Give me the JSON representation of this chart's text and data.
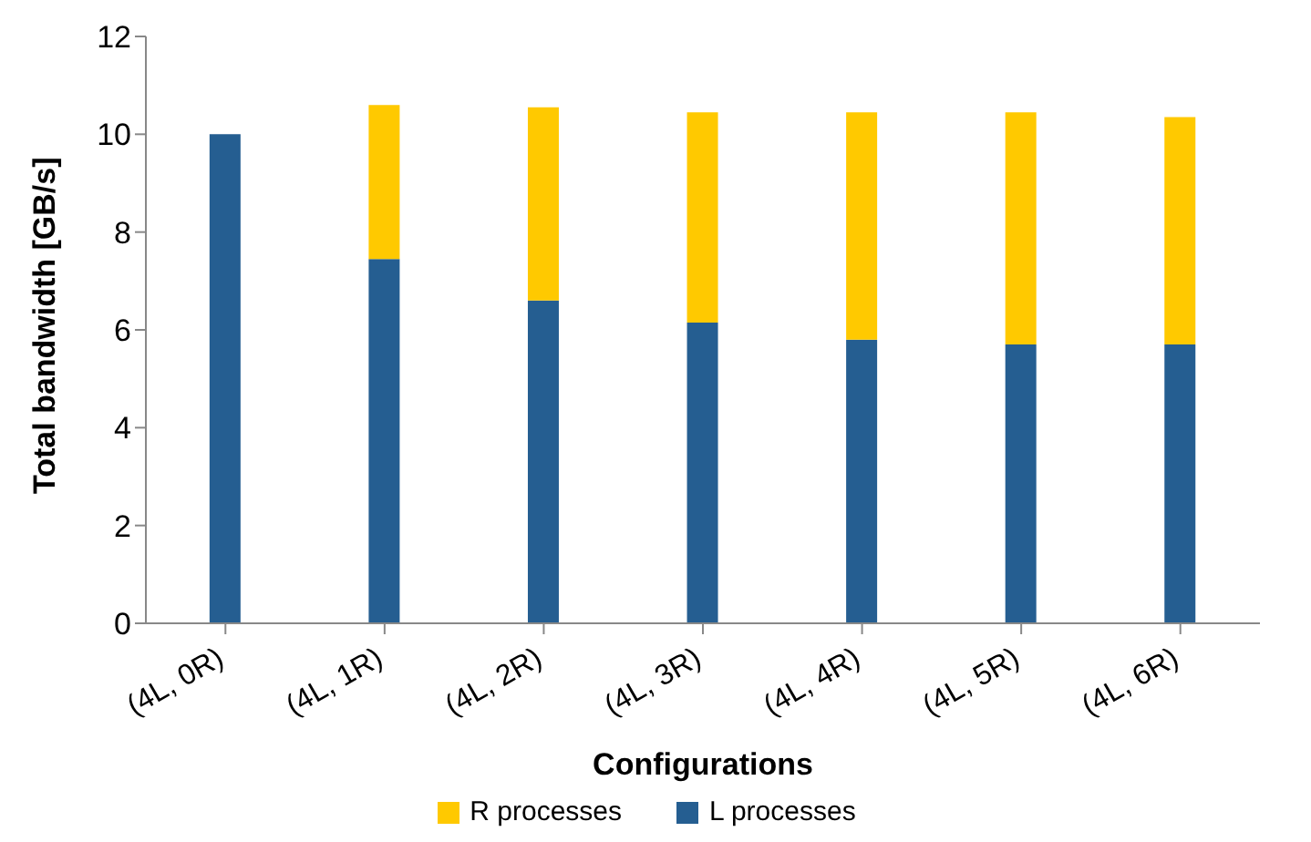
{
  "chart_data": {
    "type": "bar",
    "stacked": true,
    "xlabel": "Configurations",
    "ylabel": "Total bandwidth [GB/s]",
    "categories": [
      "(4L, 0R)",
      "(4L, 1R)",
      "(4L, 2R)",
      "(4L, 3R)",
      "(4L, 4R)",
      "(4L, 5R)",
      "(4L, 6R)"
    ],
    "series": [
      {
        "name": "L processes",
        "color": "#255e91",
        "values": [
          10.0,
          7.45,
          6.6,
          6.15,
          5.8,
          5.7,
          5.7
        ]
      },
      {
        "name": "R processes",
        "color": "#ffc900",
        "values": [
          0,
          3.15,
          3.95,
          4.3,
          4.65,
          4.75,
          4.65
        ]
      }
    ],
    "ylim": [
      0,
      12
    ],
    "yticks": [
      0,
      2,
      4,
      6,
      8,
      10,
      12
    ],
    "grid": false,
    "legend": "bottom"
  }
}
